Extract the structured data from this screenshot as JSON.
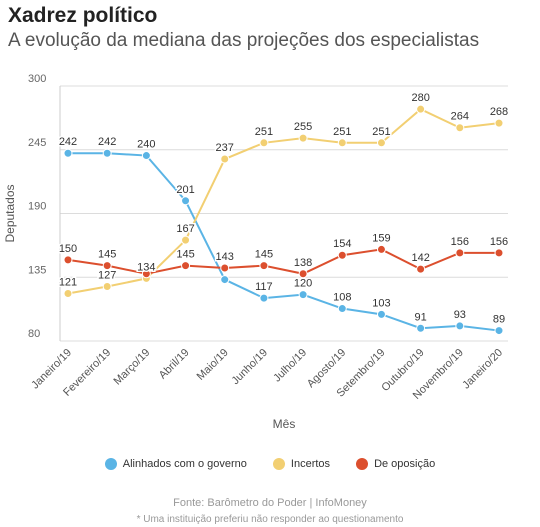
{
  "header": {
    "title": "Xadrez político",
    "subtitle": "A evolução da mediana das projeções dos especialistas"
  },
  "chart_data": {
    "type": "line",
    "xlabel": "Mês",
    "ylabel": "Deputados",
    "ylim": [
      80,
      300
    ],
    "yticks": [
      80,
      135,
      190,
      245,
      300
    ],
    "grid": true,
    "legend_position": "bottom",
    "categories": [
      "Janeiro/19",
      "Fevereiro/19",
      "Março/19",
      "Abril/19",
      "Maio/19",
      "Junho/19",
      "Julho/19",
      "Agosto/19",
      "Setembro/19",
      "Outubro/19",
      "Novembro/19",
      "Janeiro/20"
    ],
    "series": [
      {
        "name": "Alinhados com o governo",
        "color": "#5ab4e5",
        "values": [
          242,
          242,
          240,
          201,
          133,
          117,
          120,
          108,
          103,
          91,
          93,
          89
        ],
        "labels": [
          "242",
          "242",
          "240",
          "201",
          "",
          "117",
          "120",
          "108",
          "103",
          "91",
          "93",
          "89"
        ]
      },
      {
        "name": "Incertos",
        "color": "#f2cf72",
        "values": [
          121,
          127,
          134,
          167,
          237,
          251,
          255,
          251,
          251,
          280,
          264,
          268
        ],
        "labels": [
          "121",
          "127",
          "134",
          "167",
          "237",
          "251",
          "255",
          "251",
          "251",
          "280",
          "264",
          "268"
        ]
      },
      {
        "name": "De oposição",
        "color": "#dc4f2e",
        "values": [
          150,
          145,
          138,
          145,
          143,
          145,
          138,
          154,
          159,
          142,
          156,
          156
        ],
        "labels": [
          "150",
          "145",
          "",
          "145",
          "143",
          "145",
          "138",
          "154",
          "159",
          "142",
          "156",
          "156"
        ]
      }
    ]
  },
  "footer": {
    "source": "Fonte: Barômetro do Poder | InfoMoney",
    "note": "* Uma instituição preferiu não responder ao questionamento"
  }
}
